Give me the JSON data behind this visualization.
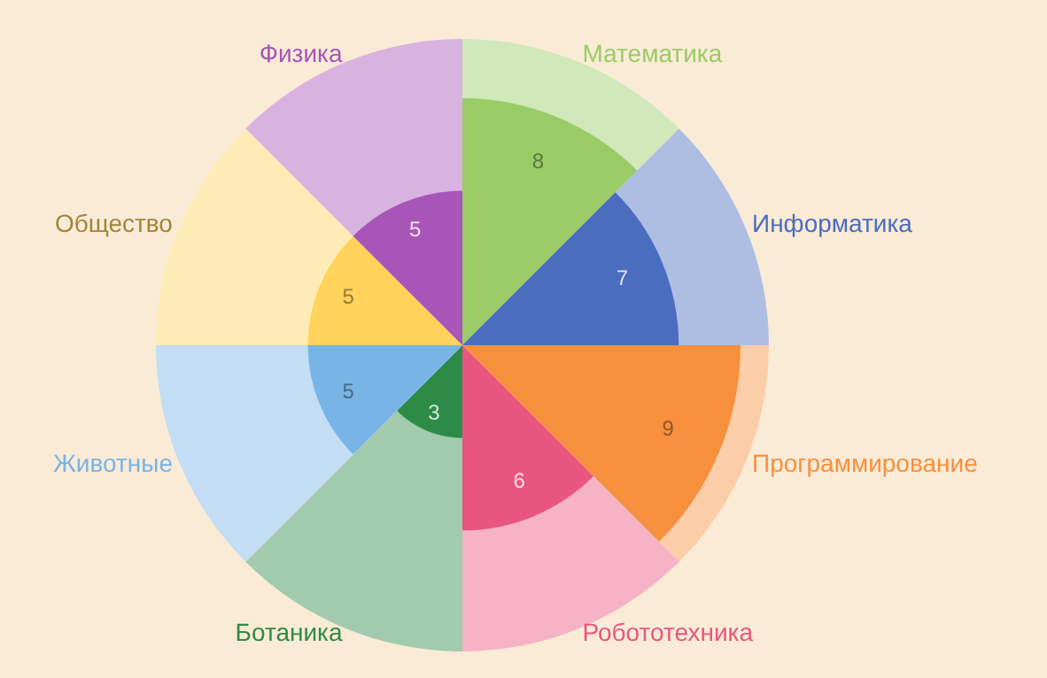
{
  "chart_data": {
    "type": "other",
    "categories": [
      "Математика",
      "Информатика",
      "Программирование",
      "Робототехника",
      "Ботаника",
      "Животные",
      "Общество",
      "Физика"
    ],
    "values": [
      8,
      7,
      9,
      6,
      3,
      5,
      5,
      5
    ],
    "colors": [
      "#99cc66",
      "#4a6dbf",
      "#f6903d",
      "#e8567f",
      "#2e8b47",
      "#78b4e6",
      "#ffd35c",
      "#a855b8"
    ],
    "data_labels": true
  }
}
